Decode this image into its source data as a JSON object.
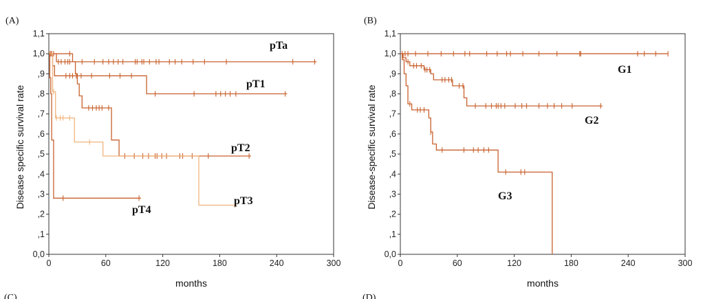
{
  "chart_data": [
    {
      "type": "line",
      "panel_label": "(A)",
      "xlabel": "months",
      "ylabel": "Disease specific survival rate",
      "xlim": [
        0,
        300
      ],
      "ylim": [
        0,
        1.1
      ],
      "x_ticks": [
        "0",
        "60",
        "120",
        "180",
        "240",
        "300"
      ],
      "y_ticks": [
        "0,0",
        ",1",
        ",2",
        ",3",
        ",4",
        ",5",
        ",6",
        ",7",
        ",8",
        ",9",
        "1,0",
        "1,1"
      ],
      "grid": false,
      "series": [
        {
          "name": "pTa",
          "color": "#c8602c",
          "steps": [
            [
              0,
              1.0
            ],
            [
              8,
              0.96
            ],
            [
              282,
              0.96
            ]
          ],
          "censored": [
            2,
            3,
            5,
            10,
            13,
            17,
            20,
            22,
            35,
            48,
            57,
            63,
            68,
            73,
            78,
            91,
            93,
            98,
            100,
            106,
            113,
            116,
            127,
            133,
            140,
            152,
            164,
            187,
            257,
            280
          ]
        },
        {
          "name": "pT1",
          "color": "#c8602c",
          "steps": [
            [
              0,
              1.0
            ],
            [
              4,
              0.94
            ],
            [
              6,
              0.89
            ],
            [
              103,
              0.89
            ],
            [
              103,
              0.8
            ],
            [
              251,
              0.8
            ]
          ],
          "censored": [
            18,
            22,
            25,
            29,
            34,
            45,
            64,
            75,
            87,
            112,
            153,
            176,
            181,
            186,
            191,
            197,
            249
          ]
        },
        {
          "name": "pT2",
          "color": "#c8602c",
          "steps": [
            [
              0,
              1.0
            ],
            [
              25,
              1.0
            ],
            [
              25,
              0.96
            ],
            [
              28,
              0.96
            ],
            [
              28,
              0.9
            ],
            [
              30,
              0.9
            ],
            [
              30,
              0.85
            ],
            [
              32,
              0.85
            ],
            [
              32,
              0.79
            ],
            [
              35,
              0.79
            ],
            [
              35,
              0.73
            ],
            [
              66,
              0.73
            ],
            [
              66,
              0.57
            ],
            [
              74,
              0.57
            ],
            [
              74,
              0.49
            ],
            [
              213,
              0.49
            ]
          ],
          "censored": [
            22,
            42,
            46,
            50,
            53,
            56,
            63,
            80,
            90,
            99,
            105,
            112,
            114,
            119,
            124,
            138,
            141,
            151,
            168,
            211
          ]
        },
        {
          "name": "pT3",
          "color": "#f1b47c",
          "steps": [
            [
              0,
              1.0
            ],
            [
              4,
              1.0
            ],
            [
              4,
              0.81
            ],
            [
              7,
              0.81
            ],
            [
              7,
              0.68
            ],
            [
              27,
              0.68
            ],
            [
              27,
              0.56
            ],
            [
              57,
              0.56
            ],
            [
              57,
              0.49
            ],
            [
              158,
              0.49
            ],
            [
              158,
              0.245
            ],
            [
              198,
              0.245
            ]
          ],
          "censored": [
            1,
            5,
            8,
            12,
            15,
            22,
            43,
            196
          ]
        },
        {
          "name": "pT4",
          "color": "#c8602c",
          "steps": [
            [
              0,
              1.0
            ],
            [
              1,
              1.0
            ],
            [
              1,
              0.88
            ],
            [
              2,
              0.88
            ],
            [
              2,
              0.8
            ],
            [
              3,
              0.8
            ],
            [
              3,
              0.57
            ],
            [
              5,
              0.57
            ],
            [
              5,
              0.28
            ],
            [
              97,
              0.28
            ]
          ],
          "censored": [
            15,
            95
          ]
        }
      ]
    },
    {
      "type": "line",
      "panel_label": "(B)",
      "xlabel": "months",
      "ylabel": "Disease-specific survival rate",
      "xlim": [
        0,
        300
      ],
      "ylim": [
        0,
        1.1
      ],
      "x_ticks": [
        "0",
        "60",
        "120",
        "180",
        "240",
        "300"
      ],
      "y_ticks": [
        "0,0",
        ",1",
        ",2",
        ",3",
        ",4",
        ",5",
        ",6",
        ",7",
        ",8",
        ",9",
        "1,0",
        "1,1"
      ],
      "grid": false,
      "series": [
        {
          "name": "G1",
          "color": "#c8602c",
          "steps": [
            [
              0,
              1.0
            ],
            [
              282,
              1.0
            ]
          ],
          "censored": [
            2,
            5,
            8,
            16,
            29,
            43,
            56,
            68,
            73,
            91,
            102,
            112,
            116,
            129,
            146,
            165,
            189,
            190,
            250,
            257,
            269,
            282
          ]
        },
        {
          "name": "G2",
          "color": "#c8602c",
          "steps": [
            [
              0,
              1.0
            ],
            [
              3,
              0.98
            ],
            [
              6,
              0.96
            ],
            [
              10,
              0.94
            ],
            [
              25,
              0.92
            ],
            [
              32,
              0.9
            ],
            [
              35,
              0.87
            ],
            [
              50,
              0.87
            ],
            [
              55,
              0.84
            ],
            [
              65,
              0.84
            ],
            [
              67,
              0.78
            ],
            [
              70,
              0.74
            ],
            [
              213,
              0.74
            ]
          ],
          "censored": [
            8,
            14,
            17,
            22,
            26,
            28,
            31,
            44,
            47,
            51,
            54,
            62,
            66,
            79,
            90,
            96,
            101,
            103,
            106,
            110,
            121,
            128,
            133,
            146,
            155,
            162,
            170,
            181,
            211
          ]
        },
        {
          "name": "G3",
          "color": "#c8602c",
          "steps": [
            [
              0,
              1.0
            ],
            [
              2,
              0.97
            ],
            [
              4,
              0.9
            ],
            [
              6,
              0.84
            ],
            [
              8,
              0.75
            ],
            [
              12,
              0.72
            ],
            [
              28,
              0.72
            ],
            [
              30,
              0.68
            ],
            [
              32,
              0.61
            ],
            [
              34,
              0.55
            ],
            [
              38,
              0.52
            ],
            [
              103,
              0.52
            ],
            [
              103,
              0.41
            ],
            [
              160,
              0.41
            ],
            [
              160,
              0.0
            ]
          ],
          "censored": [
            10,
            18,
            21,
            25,
            32,
            44,
            67,
            77,
            82,
            88,
            93,
            111,
            127,
            131
          ]
        }
      ]
    }
  ],
  "bottom_labels": [
    "(C)",
    "(D)"
  ]
}
